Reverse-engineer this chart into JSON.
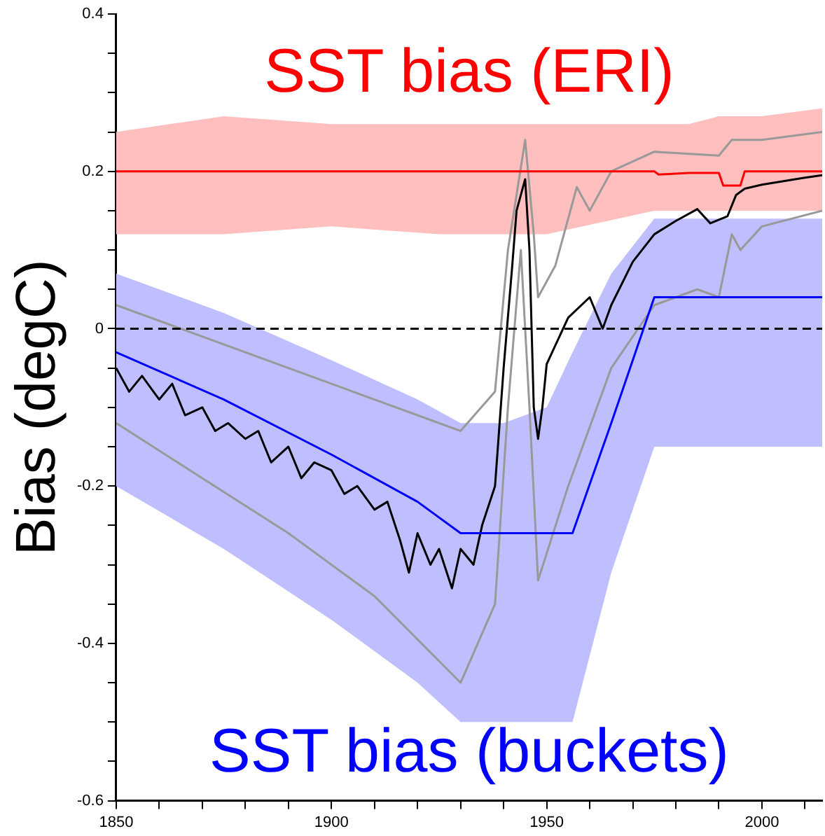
{
  "chart_data": {
    "type": "line",
    "ylabel": "Bias (degC)",
    "xlim": [
      1850,
      2014
    ],
    "xticks": [
      1850,
      {
        "value": 1860,
        "label": null
      },
      {
        "value": 1870,
        "label": null
      },
      {
        "value": 1880,
        "label": null
      },
      {
        "value": 1890,
        "label": null
      },
      1900,
      {
        "value": 1910,
        "label": null
      },
      {
        "value": 1920,
        "label": null
      },
      {
        "value": 1930,
        "label": null
      },
      {
        "value": 1940,
        "label": null
      },
      1950,
      {
        "value": 1960,
        "label": null
      },
      {
        "value": 1970,
        "label": null
      },
      {
        "value": 1980,
        "label": null
      },
      {
        "value": 1990,
        "label": null
      },
      2000,
      {
        "value": 2010,
        "label": null
      }
    ],
    "ylim": [
      -0.6,
      0.4
    ],
    "yticks": [
      -0.6,
      {
        "value": -0.55,
        "label": null
      },
      {
        "value": -0.5,
        "label": null
      },
      {
        "value": -0.45,
        "label": null
      },
      -0.4,
      {
        "value": -0.35,
        "label": null
      },
      {
        "value": -0.3,
        "label": null
      },
      {
        "value": -0.25,
        "label": null
      },
      -0.2,
      {
        "value": -0.15,
        "label": null
      },
      {
        "value": -0.1,
        "label": null
      },
      {
        "value": -0.05,
        "label": null
      },
      0,
      {
        "value": 0.05,
        "label": null
      },
      {
        "value": 0.1,
        "label": null
      },
      {
        "value": 0.15,
        "label": null
      },
      0.2,
      {
        "value": 0.25,
        "label": null
      },
      {
        "value": 0.3,
        "label": null
      },
      {
        "value": 0.35,
        "label": null
      },
      0.4
    ],
    "grid": false,
    "legend": false,
    "marker": "none",
    "line_style": "solid",
    "ref_lines": [
      {
        "axis": "y",
        "value": 0,
        "color": "#000000",
        "line_style": "dashed"
      }
    ],
    "series": [
      {
        "name": "SST bias (ERI)",
        "color": "#ff0000",
        "x": [
          1850,
          1875,
          1900,
          1925,
          1950,
          1975,
          1976,
          1980,
          1983,
          1990,
          1991,
          1995,
          1996,
          2000,
          2014
        ],
        "values": [
          0.2,
          0.2,
          0.2,
          0.2,
          0.2,
          0.2,
          0.196,
          0.197,
          0.198,
          0.198,
          0.182,
          0.182,
          0.2,
          0.2,
          0.2
        ],
        "lower": [
          0.12,
          0.12,
          0.13,
          0.12,
          0.12,
          0.15,
          0.15,
          0.15,
          0.15,
          0.15,
          0.15,
          0.15,
          0.15,
          0.15,
          0.15
        ],
        "upper": [
          0.25,
          0.27,
          0.26,
          0.26,
          0.26,
          0.26,
          0.26,
          0.26,
          0.26,
          0.27,
          0.27,
          0.27,
          0.27,
          0.27,
          0.28
        ]
      },
      {
        "name": "SST bias (buckets)",
        "color": "#0000ff",
        "x": [
          1850,
          1875,
          1900,
          1920,
          1930,
          1940,
          1950,
          1956,
          1965,
          1975,
          2014
        ],
        "values": [
          -0.03,
          -0.09,
          -0.16,
          -0.22,
          -0.26,
          -0.26,
          -0.26,
          -0.26,
          -0.12,
          0.04,
          0.04
        ],
        "lower": [
          -0.2,
          -0.28,
          -0.37,
          -0.45,
          -0.5,
          -0.5,
          -0.5,
          -0.5,
          -0.31,
          -0.15,
          -0.15
        ],
        "upper": [
          0.07,
          0.02,
          -0.04,
          -0.09,
          -0.12,
          -0.12,
          -0.1,
          -0.03,
          0.07,
          0.14,
          0.14
        ]
      },
      {
        "color": "#999999",
        "x": [
          1850,
          1870,
          1890,
          1910,
          1930,
          1938,
          1941,
          1945,
          1947,
          1948,
          1952,
          1957,
          1960,
          1965,
          1975,
          1990,
          1993,
          2000,
          2014
        ],
        "values": [
          0.03,
          -0.01,
          -0.05,
          -0.09,
          -0.13,
          -0.08,
          0.1,
          0.24,
          0.12,
          0.04,
          0.08,
          0.18,
          0.15,
          0.2,
          0.225,
          0.22,
          0.24,
          0.24,
          0.25
        ]
      },
      {
        "color": "#999999",
        "x": [
          1850,
          1870,
          1890,
          1910,
          1930,
          1938,
          1941,
          1944,
          1946,
          1948,
          1955,
          1965,
          1975,
          1985,
          1990,
          1993,
          1995,
          2000,
          2014
        ],
        "values": [
          -0.12,
          -0.19,
          -0.26,
          -0.34,
          -0.45,
          -0.35,
          -0.1,
          0.1,
          -0.1,
          -0.32,
          -0.2,
          -0.05,
          0.03,
          0.05,
          0.04,
          0.12,
          0.1,
          0.13,
          0.15
        ]
      },
      {
        "color": "#000000",
        "x": [
          1850,
          1853,
          1856,
          1860,
          1863,
          1866,
          1870,
          1873,
          1876,
          1880,
          1883,
          1886,
          1890,
          1893,
          1896,
          1900,
          1903,
          1906,
          1910,
          1913,
          1916,
          1918,
          1920,
          1923,
          1925,
          1928,
          1930,
          1933,
          1935,
          1938,
          1940,
          1942,
          1943,
          1945,
          1946,
          1947,
          1948,
          1949,
          1950,
          1955,
          1960,
          1963,
          1965,
          1970,
          1975,
          1980,
          1985,
          1988,
          1992,
          1994,
          1996,
          2000,
          2010,
          2014
        ],
        "values": [
          -0.05,
          -0.08,
          -0.06,
          -0.09,
          -0.07,
          -0.11,
          -0.1,
          -0.13,
          -0.12,
          -0.14,
          -0.13,
          -0.17,
          -0.15,
          -0.19,
          -0.17,
          -0.18,
          -0.21,
          -0.2,
          -0.23,
          -0.22,
          -0.27,
          -0.31,
          -0.26,
          -0.3,
          -0.28,
          -0.33,
          -0.28,
          -0.3,
          -0.25,
          -0.2,
          -0.05,
          0.08,
          0.15,
          0.19,
          0.1,
          -0.1,
          -0.14,
          -0.1,
          -0.045,
          0.014,
          0.04,
          0.0,
          0.03,
          0.085,
          0.12,
          0.137,
          0.152,
          0.134,
          0.143,
          0.17,
          0.178,
          0.183,
          0.192,
          0.195
        ]
      }
    ]
  }
}
